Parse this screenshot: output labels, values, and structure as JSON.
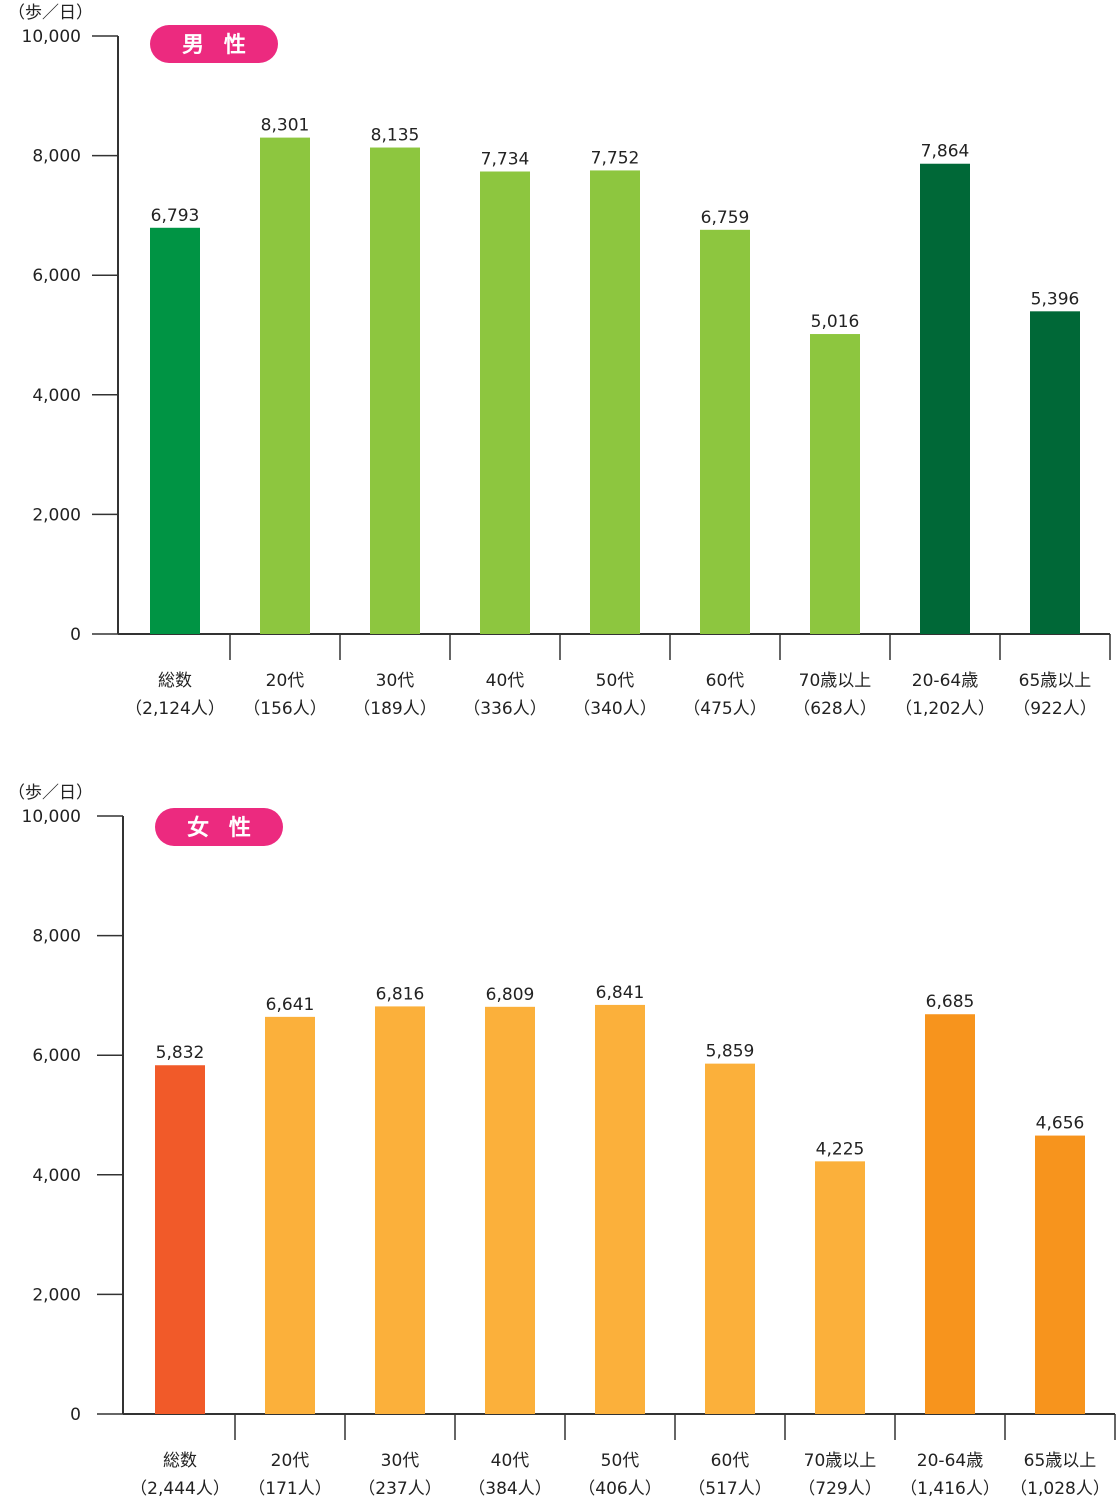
{
  "chart_data": [
    {
      "type": "bar",
      "title": "男 性",
      "ylabel": "（歩／日）",
      "ylim": [
        0,
        10000
      ],
      "yticks": [
        "0",
        "2,000",
        "4,000",
        "6,000",
        "8,000",
        "10,000"
      ],
      "categories": [
        "総数",
        "20代",
        "30代",
        "40代",
        "50代",
        "60代",
        "70歳以上",
        "20-64歳",
        "65歳以上"
      ],
      "counts": [
        "（2,124人）",
        "（156人）",
        "（189人）",
        "（336人）",
        "（340人）",
        "（475人）",
        "（628人）",
        "（1,202人）",
        "（922人）"
      ],
      "values": [
        6793,
        8301,
        8135,
        7734,
        7752,
        6759,
        5016,
        7864,
        5396
      ],
      "value_labels": [
        "6,793",
        "8,301",
        "8,135",
        "7,734",
        "7,752",
        "6,759",
        "5,016",
        "7,864",
        "5,396"
      ],
      "colors": [
        "#009444",
        "#8dc63f",
        "#8dc63f",
        "#8dc63f",
        "#8dc63f",
        "#8dc63f",
        "#8dc63f",
        "#006837",
        "#006837"
      ],
      "badge_color": "#ec2a7f"
    },
    {
      "type": "bar",
      "title": "女 性",
      "ylabel": "（歩／日）",
      "ylim": [
        0,
        10000
      ],
      "yticks": [
        "0",
        "2,000",
        "4,000",
        "6,000",
        "8,000",
        "10,000"
      ],
      "categories": [
        "総数",
        "20代",
        "30代",
        "40代",
        "50代",
        "60代",
        "70歳以上",
        "20-64歳",
        "65歳以上"
      ],
      "counts": [
        "（2,444人）",
        "（171人）",
        "（237人）",
        "（384人）",
        "（406人）",
        "（517人）",
        "（729人）",
        "（1,416人）",
        "（1,028人）"
      ],
      "values": [
        5832,
        6641,
        6816,
        6809,
        6841,
        5859,
        4225,
        6685,
        4656
      ],
      "value_labels": [
        "5,832",
        "6,641",
        "6,816",
        "6,809",
        "6,841",
        "5,859",
        "4,225",
        "6,685",
        "4,656"
      ],
      "colors": [
        "#f15a29",
        "#fbb03b",
        "#fbb03b",
        "#fbb03b",
        "#fbb03b",
        "#fbb03b",
        "#fbb03b",
        "#f7941d",
        "#f7941d"
      ],
      "badge_color": "#ec2a7f"
    }
  ]
}
